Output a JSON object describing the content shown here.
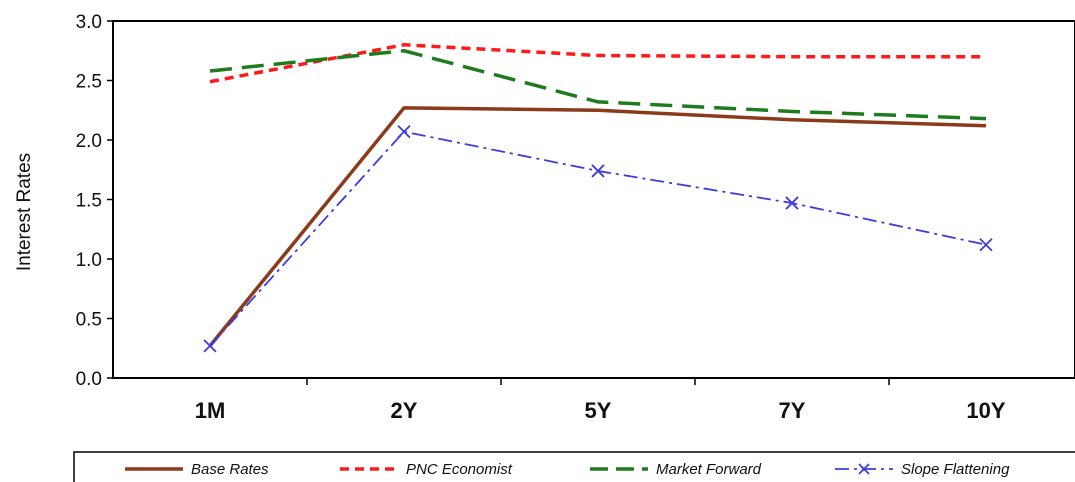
{
  "chart_data": {
    "type": "line",
    "title": "",
    "xlabel": "",
    "ylabel": "Interest Rates",
    "categories": [
      "1M",
      "2Y",
      "5Y",
      "7Y",
      "10Y"
    ],
    "ylim": [
      0,
      3.0
    ],
    "yticks": [
      "0.0",
      "0.5",
      "1.0",
      "1.5",
      "2.0",
      "2.5",
      "3.0"
    ],
    "grid": false,
    "legend_position": "bottom",
    "series": [
      {
        "name": "Base Rates",
        "values": [
          0.27,
          2.27,
          2.25,
          2.17,
          2.12
        ],
        "color": "#8B3A1A",
        "style": "solid"
      },
      {
        "name": "PNC Economist",
        "values": [
          2.49,
          2.8,
          2.71,
          2.7,
          2.7
        ],
        "color": "#FF1A1A",
        "style": "short-dash"
      },
      {
        "name": "Market Forward",
        "values": [
          2.58,
          2.75,
          2.32,
          2.24,
          2.18
        ],
        "color": "#1E7B1E",
        "style": "long-dash"
      },
      {
        "name": "Slope Flattening",
        "values": [
          0.27,
          2.07,
          1.74,
          1.47,
          1.12
        ],
        "color": "#3C3CE0",
        "style": "dash-dot",
        "marker": "x"
      }
    ]
  }
}
